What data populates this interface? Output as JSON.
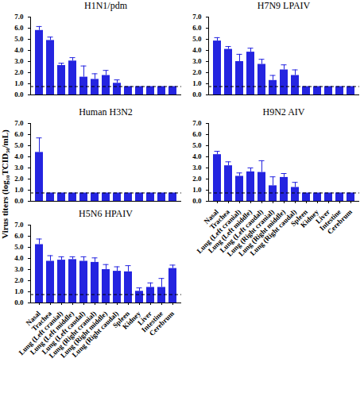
{
  "chart_data": [
    {
      "type": "bar",
      "title": "H1N1/pdm",
      "color": "#2424e0",
      "categories": [
        "Nasal",
        "Trachea",
        "Lung (Left cranial)",
        "Lung (Left middle)",
        "Lung (Left caudal)",
        "Lung (Right cranial)",
        "Lung (Right middle)",
        "Lung (Right caudal)",
        "Spleen",
        "Kidney",
        "Liver",
        "Intestine",
        "Cerebrum"
      ],
      "values": [
        5.8,
        4.9,
        2.65,
        3.05,
        1.6,
        1.4,
        1.75,
        1.05,
        0.75,
        0.75,
        0.75,
        0.75,
        0.75
      ],
      "errors": [
        0.35,
        0.3,
        0.2,
        0.3,
        1.0,
        0.5,
        0.45,
        0.3,
        0,
        0,
        0,
        0,
        0
      ],
      "detection_limit": 0.75,
      "ylim": [
        0,
        7
      ],
      "yticks": [
        0,
        1,
        2,
        3,
        4,
        5,
        6,
        7
      ],
      "tick_labels": "y"
    },
    {
      "type": "bar",
      "title": "H7N9 LPAIV",
      "color": "#2424e0",
      "categories": [
        "Nasal",
        "Trachea",
        "Lung (Left cranial)",
        "Lung (Left middle)",
        "Lung (Left caudal)",
        "Lung (Right cranial)",
        "Lung (Right middle)",
        "Lung (Right caudal)",
        "Spleen",
        "Kidney",
        "Liver",
        "Intestine",
        "Cerebrum"
      ],
      "values": [
        4.85,
        4.1,
        3.0,
        3.85,
        2.75,
        1.3,
        2.25,
        1.75,
        0.75,
        0.75,
        0.75,
        0.75,
        0.75
      ],
      "errors": [
        0.3,
        0.25,
        0.65,
        0.35,
        0.45,
        0.45,
        0.45,
        0.5,
        0,
        0,
        0,
        0,
        0
      ],
      "detection_limit": 0.75,
      "ylim": [
        0,
        7
      ],
      "yticks": [
        0,
        1,
        2,
        3,
        4,
        5,
        6,
        7
      ],
      "tick_labels": "y"
    },
    {
      "type": "bar",
      "title": "Human H3N2",
      "color": "#2424e0",
      "ylabel": "Virus titers (log₁₀TCID₅₀/mL)",
      "categories": [
        "Nasal",
        "Trachea",
        "Lung (Left cranial)",
        "Lung (Left middle)",
        "Lung (Left caudal)",
        "Lung (Right cranial)",
        "Lung (Right middle)",
        "Lung (Right caudal)",
        "Spleen",
        "Kidney",
        "Liver",
        "Intestine",
        "Cerebrum"
      ],
      "values": [
        4.4,
        0.75,
        0.75,
        0.75,
        0.75,
        0.75,
        0.75,
        0.75,
        0.75,
        0.75,
        0.75,
        0.75,
        0.75
      ],
      "errors": [
        1.3,
        0,
        0,
        0,
        0,
        0,
        0,
        0,
        0,
        0,
        0,
        0,
        0
      ],
      "detection_limit": 0.75,
      "ylim": [
        0,
        7
      ],
      "yticks": [
        0,
        1,
        2,
        3,
        4,
        5,
        6,
        7
      ],
      "tick_labels": "y"
    },
    {
      "type": "bar",
      "title": "H9N2 AIV",
      "color": "#2424e0",
      "categories": [
        "Nasal",
        "Trachea",
        "Lung (Left cranial)",
        "Lung (Left middle)",
        "Lung (Left caudal)",
        "Lung (Right cranial)",
        "Lung (Right middle)",
        "Lung (Right caudal)",
        "Spleen",
        "Kidney",
        "Liver",
        "Intestine",
        "Cerebrum"
      ],
      "values": [
        4.2,
        3.2,
        2.25,
        2.65,
        2.6,
        1.4,
        2.15,
        1.25,
        0.75,
        0.75,
        0.75,
        0.75,
        0.75
      ],
      "errors": [
        0.3,
        0.35,
        0.3,
        0.35,
        1.05,
        0.8,
        0.35,
        0.45,
        0,
        0,
        0,
        0,
        0
      ],
      "detection_limit": 0.75,
      "ylim": [
        0,
        7
      ],
      "yticks": [
        0,
        1,
        2,
        3,
        4,
        5,
        6,
        7
      ],
      "tick_labels": true
    },
    {
      "type": "bar",
      "title": "H5N6 HPAIV",
      "color": "#2424e0",
      "categories": [
        "Nasal",
        "Trachea",
        "Lung (Left cranial)",
        "Lung (Left middle)",
        "Lung (Left caudal)",
        "Lung (Right cranial)",
        "Lung (Right middle)",
        "Lung (Right caudal)",
        "Spleen",
        "Kidney",
        "Liver",
        "Intestine",
        "Cerebrum"
      ],
      "values": [
        5.25,
        3.75,
        3.85,
        3.9,
        3.75,
        3.65,
        3.0,
        2.85,
        2.8,
        1.05,
        1.4,
        1.4,
        3.1
      ],
      "errors": [
        0.5,
        0.5,
        0.3,
        0.25,
        0.4,
        0.4,
        0.45,
        0.4,
        0.55,
        0.3,
        0.4,
        0.8,
        0.3
      ],
      "detection_limit": 0.75,
      "ylim": [
        0,
        7
      ],
      "yticks": [
        0,
        1,
        2,
        3,
        4,
        5,
        6,
        7
      ],
      "tick_labels": true
    }
  ]
}
